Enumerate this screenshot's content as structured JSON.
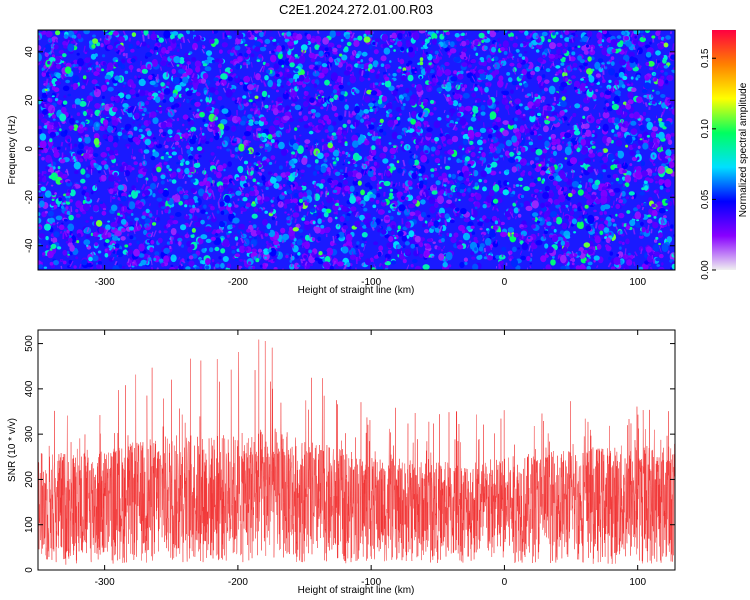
{
  "figure": {
    "title": "C2E1.2024.272.01.00.R03"
  },
  "chart_data": [
    {
      "type": "heatmap",
      "title": "C2E1.2024.272.01.00.R03",
      "xlabel": "Height of straight line (km)",
      "ylabel": "Frequency (Hz)",
      "xlim": [
        -350,
        128
      ],
      "ylim": [
        -50,
        49
      ],
      "x_ticks": [
        -300,
        -200,
        -100,
        0,
        100
      ],
      "x_tick_labels": [
        "-300",
        "-200",
        "-100",
        "0",
        "100"
      ],
      "y_ticks": [
        -40,
        -20,
        0,
        20,
        40
      ],
      "y_tick_labels": [
        "-40",
        "-20",
        "0",
        "20",
        "40"
      ],
      "grid": false,
      "colorbar": {
        "label": "Normalized spectral amplitude",
        "range": [
          0.0,
          0.17
        ],
        "ticks": [
          0.0,
          0.05,
          0.1,
          0.15
        ],
        "tick_labels": [
          "0.00",
          "0.05",
          "0.10",
          "0.15"
        ],
        "colormap": [
          "#f0f0f0",
          "#8800ff",
          "#0000ff",
          "#00e0ff",
          "#00ff60",
          "#ffff00",
          "#ff8000",
          "#ff0040"
        ]
      },
      "value_distribution": {
        "background": 0.03,
        "typical_range": [
          0.02,
          0.09
        ],
        "max_spots": 0.11
      }
    },
    {
      "type": "line",
      "xlabel": "Height of straight line (km)",
      "ylabel": "SNR (10 * v/v)",
      "xlim": [
        -350,
        128
      ],
      "ylim": [
        0,
        530
      ],
      "x_ticks": [
        -300,
        -200,
        -100,
        0,
        100
      ],
      "x_tick_labels": [
        "-300",
        "-200",
        "-100",
        "0",
        "100"
      ],
      "y_ticks": [
        0,
        100,
        200,
        300,
        400,
        500
      ],
      "y_tick_labels": [
        "0",
        "100",
        "200",
        "300",
        "400",
        "500"
      ],
      "grid": false,
      "line_color": "#f03030",
      "envelope": {
        "x": [
          -350,
          -300,
          -250,
          -200,
          -175,
          -150,
          -100,
          -50,
          0,
          50,
          100,
          128
        ],
        "lower": [
          10,
          10,
          15,
          10,
          20,
          15,
          15,
          15,
          15,
          15,
          10,
          10
        ],
        "typical_upper": [
          260,
          270,
          300,
          300,
          320,
          290,
          250,
          240,
          250,
          270,
          280,
          280
        ],
        "peak_upper": [
          400,
          380,
          500,
          510,
          530,
          450,
          360,
          360,
          360,
          380,
          380,
          380
        ]
      }
    }
  ]
}
